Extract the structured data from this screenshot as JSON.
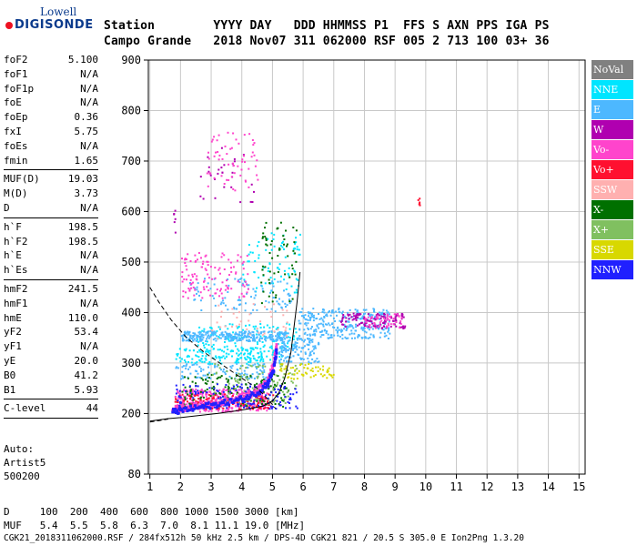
{
  "logo": {
    "line1": "Lowell",
    "line2": "DIGISONDE"
  },
  "header": {
    "line1": "Station        YYYY DAY   DDD HHMMSS P1  FFS S AXN PPS IGA PS",
    "line2": "Campo Grande   2018 Nov07 311 062000 RSF 005 2 713 100 03+ 36"
  },
  "params": [
    [
      {
        "k": "foF2",
        "v": "5.100"
      },
      {
        "k": "foF1",
        "v": "N/A"
      },
      {
        "k": "foF1p",
        "v": "N/A"
      },
      {
        "k": "foE",
        "v": "N/A"
      },
      {
        "k": "foEp",
        "v": "0.36"
      },
      {
        "k": "fxI",
        "v": "5.75"
      },
      {
        "k": "foEs",
        "v": "N/A"
      },
      {
        "k": "fmin",
        "v": "1.65"
      }
    ],
    [
      {
        "k": "MUF(D)",
        "v": "19.03"
      },
      {
        "k": "M(D)",
        "v": "3.73"
      },
      {
        "k": "D",
        "v": "N/A"
      }
    ],
    [
      {
        "k": "h`F",
        "v": "198.5"
      },
      {
        "k": "h`F2",
        "v": "198.5"
      },
      {
        "k": "h`E",
        "v": "N/A"
      },
      {
        "k": "h`Es",
        "v": "N/A"
      }
    ],
    [
      {
        "k": "hmF2",
        "v": "241.5"
      },
      {
        "k": "hmF1",
        "v": "N/A"
      },
      {
        "k": "hmE",
        "v": "110.0"
      },
      {
        "k": "yF2",
        "v": "53.4"
      },
      {
        "k": "yF1",
        "v": "N/A"
      },
      {
        "k": "yE",
        "v": "20.0"
      },
      {
        "k": "B0",
        "v": "41.2"
      },
      {
        "k": "B1",
        "v": "5.93"
      }
    ],
    [
      {
        "k": "C-level",
        "v": "44"
      }
    ]
  ],
  "auto": {
    "l1": "Auto:",
    "l2": "Artist5",
    "l3": "500200"
  },
  "legend": [
    {
      "label": "NoVal",
      "color": "#808080"
    },
    {
      "label": "NNE",
      "color": "#00e5ff"
    },
    {
      "label": "E",
      "color": "#4db8ff"
    },
    {
      "label": "W",
      "color": "#b000b0"
    },
    {
      "label": "Vo-",
      "color": "#ff44cc"
    },
    {
      "label": "Vo+",
      "color": "#ff1030"
    },
    {
      "label": "SSW",
      "color": "#ffb0b0"
    },
    {
      "label": "X-",
      "color": "#007000"
    },
    {
      "label": "X+",
      "color": "#80c060"
    },
    {
      "label": "SSE",
      "color": "#d8d800"
    },
    {
      "label": "NNW",
      "color": "#2020ff"
    }
  ],
  "footer": {
    "d_line": "D     100  200  400  600  800 1000 1500 3000 [km]",
    "muf_line": "MUF   5.4  5.5  5.8  6.3  7.0  8.1 11.1 19.0 [MHz]",
    "info_line": "CGK21_2018311062000.RSF / 284fx512h 50 kHz 2.5 km / DPS-4D CGK21 821 / 20.5 S 305.0 E Ion2Png 1.3.20"
  },
  "chart_data": {
    "type": "scatter",
    "xlabel": "",
    "ylabel": "",
    "xlim": [
      0.95,
      15.2
    ],
    "ylim": [
      80,
      900
    ],
    "xticks": [
      1,
      2,
      3,
      4,
      5,
      6,
      7,
      8,
      9,
      10,
      11,
      12,
      13,
      14,
      15
    ],
    "yticks": [
      80,
      200,
      300,
      400,
      500,
      600,
      700,
      800,
      900
    ],
    "grid": true,
    "legend_position": "right",
    "series": [
      {
        "name": "NNE",
        "color": "#00e5ff",
        "clusters": [
          {
            "x": [
              1.8,
              5.3
            ],
            "y": [
              300,
              330
            ],
            "n": 160
          },
          {
            "x": [
              2.5,
              5.8
            ],
            "y": [
              330,
              380
            ],
            "n": 120
          },
          {
            "x": [
              4.0,
              5.9
            ],
            "y": [
              440,
              560
            ],
            "n": 80
          }
        ]
      },
      {
        "name": "E",
        "color": "#4db8ff",
        "clusters": [
          {
            "x": [
              2.0,
              5.5
            ],
            "y": [
              345,
              365
            ],
            "n": 300
          },
          {
            "x": [
              5.8,
              8.8
            ],
            "y": [
              350,
              410
            ],
            "n": 300
          },
          {
            "x": [
              5.2,
              6.5
            ],
            "y": [
              300,
              350
            ],
            "n": 120
          },
          {
            "x": [
              1.8,
              4.8
            ],
            "y": [
              270,
              300
            ],
            "n": 100
          },
          {
            "x": [
              2.2,
              5.6
            ],
            "y": [
              400,
              470
            ],
            "n": 100
          }
        ]
      },
      {
        "name": "W",
        "color": "#b000b0",
        "clusters": [
          {
            "x": [
              7.2,
              9.3
            ],
            "y": [
              370,
              400
            ],
            "n": 120
          },
          {
            "x": [
              2.6,
              4.4
            ],
            "y": [
              620,
              740
            ],
            "n": 30
          },
          {
            "x": [
              1.75,
              1.85
            ],
            "y": [
              560,
              610
            ],
            "n": 6
          }
        ]
      },
      {
        "name": "Vo-",
        "color": "#ff44cc",
        "clusters": [
          {
            "x": [
              1.8,
              4.8
            ],
            "y": [
              205,
              250
            ],
            "n": 350
          },
          {
            "x": [
              2.8,
              4.5
            ],
            "y": [
              640,
              760
            ],
            "n": 60
          },
          {
            "x": [
              2.0,
              4.2
            ],
            "y": [
              430,
              520
            ],
            "n": 120
          },
          {
            "x": [
              8.0,
              9.2
            ],
            "y": [
              370,
              400
            ],
            "n": 50
          }
        ]
      },
      {
        "name": "Vo+",
        "color": "#ff1030",
        "clusters": [
          {
            "x": [
              1.8,
              5.0
            ],
            "y": [
              210,
              240
            ],
            "n": 150
          },
          {
            "x": [
              9.7,
              9.8
            ],
            "y": [
              610,
              630
            ],
            "n": 6
          }
        ]
      },
      {
        "name": "X-",
        "color": "#007000",
        "clusters": [
          {
            "x": [
              2.0,
              5.5
            ],
            "y": [
              215,
              280
            ],
            "n": 150
          },
          {
            "x": [
              4.6,
              5.8
            ],
            "y": [
              420,
              580
            ],
            "n": 60
          }
        ]
      },
      {
        "name": "X+",
        "color": "#80c060",
        "clusters": [
          {
            "x": [
              3.0,
              5.8
            ],
            "y": [
              220,
              300
            ],
            "n": 100
          }
        ]
      },
      {
        "name": "SSE",
        "color": "#d8d800",
        "clusters": [
          {
            "x": [
              5.2,
              7.0
            ],
            "y": [
              270,
              300
            ],
            "n": 60
          }
        ]
      },
      {
        "name": "NNW",
        "color": "#2020ff",
        "clusters": [
          {
            "x": [
              1.8,
              5.8
            ],
            "y": [
              210,
              260
            ],
            "n": 150
          }
        ]
      },
      {
        "name": "SSW",
        "color": "#ffb0b0",
        "clusters": [
          {
            "x": [
              3.0,
              5.5
            ],
            "y": [
              350,
              420
            ],
            "n": 40
          }
        ]
      }
    ],
    "trace_series": [
      {
        "name": "Vo-",
        "color": "#ff44cc",
        "x": [
          1.7,
          2.0,
          2.5,
          3.0,
          3.5,
          4.0,
          4.5,
          4.8,
          5.0,
          5.1
        ],
        "y": [
          210,
          213,
          218,
          222,
          228,
          236,
          250,
          270,
          300,
          340
        ]
      },
      {
        "name": "NNW",
        "color": "#2020ff",
        "x": [
          1.7,
          2.0,
          2.5,
          3.0,
          3.5,
          4.0,
          4.5,
          4.8,
          5.0,
          5.1
        ],
        "y": [
          206,
          209,
          214,
          219,
          225,
          232,
          245,
          263,
          290,
          330
        ]
      }
    ],
    "profile_curve": {
      "x": [
        1.0,
        1.6,
        2.0,
        2.6,
        3.2,
        3.8,
        4.3,
        4.7,
        5.0,
        5.2,
        5.4,
        5.6,
        5.8,
        5.9
      ],
      "y": [
        185,
        190,
        192,
        196,
        200,
        205,
        210,
        215,
        225,
        240,
        270,
        320,
        420,
        480
      ]
    },
    "muf_curve": {
      "x": [
        1.0,
        1.3,
        1.7,
        2.2,
        2.8,
        3.4,
        4.0,
        4.5,
        4.9,
        5.1
      ],
      "y": [
        450,
        420,
        385,
        350,
        320,
        295,
        270,
        250,
        225,
        210
      ]
    },
    "muf_curve_lower": {
      "x": [
        1.0,
        1.3,
        1.6
      ],
      "y": [
        183,
        186,
        189
      ]
    }
  }
}
